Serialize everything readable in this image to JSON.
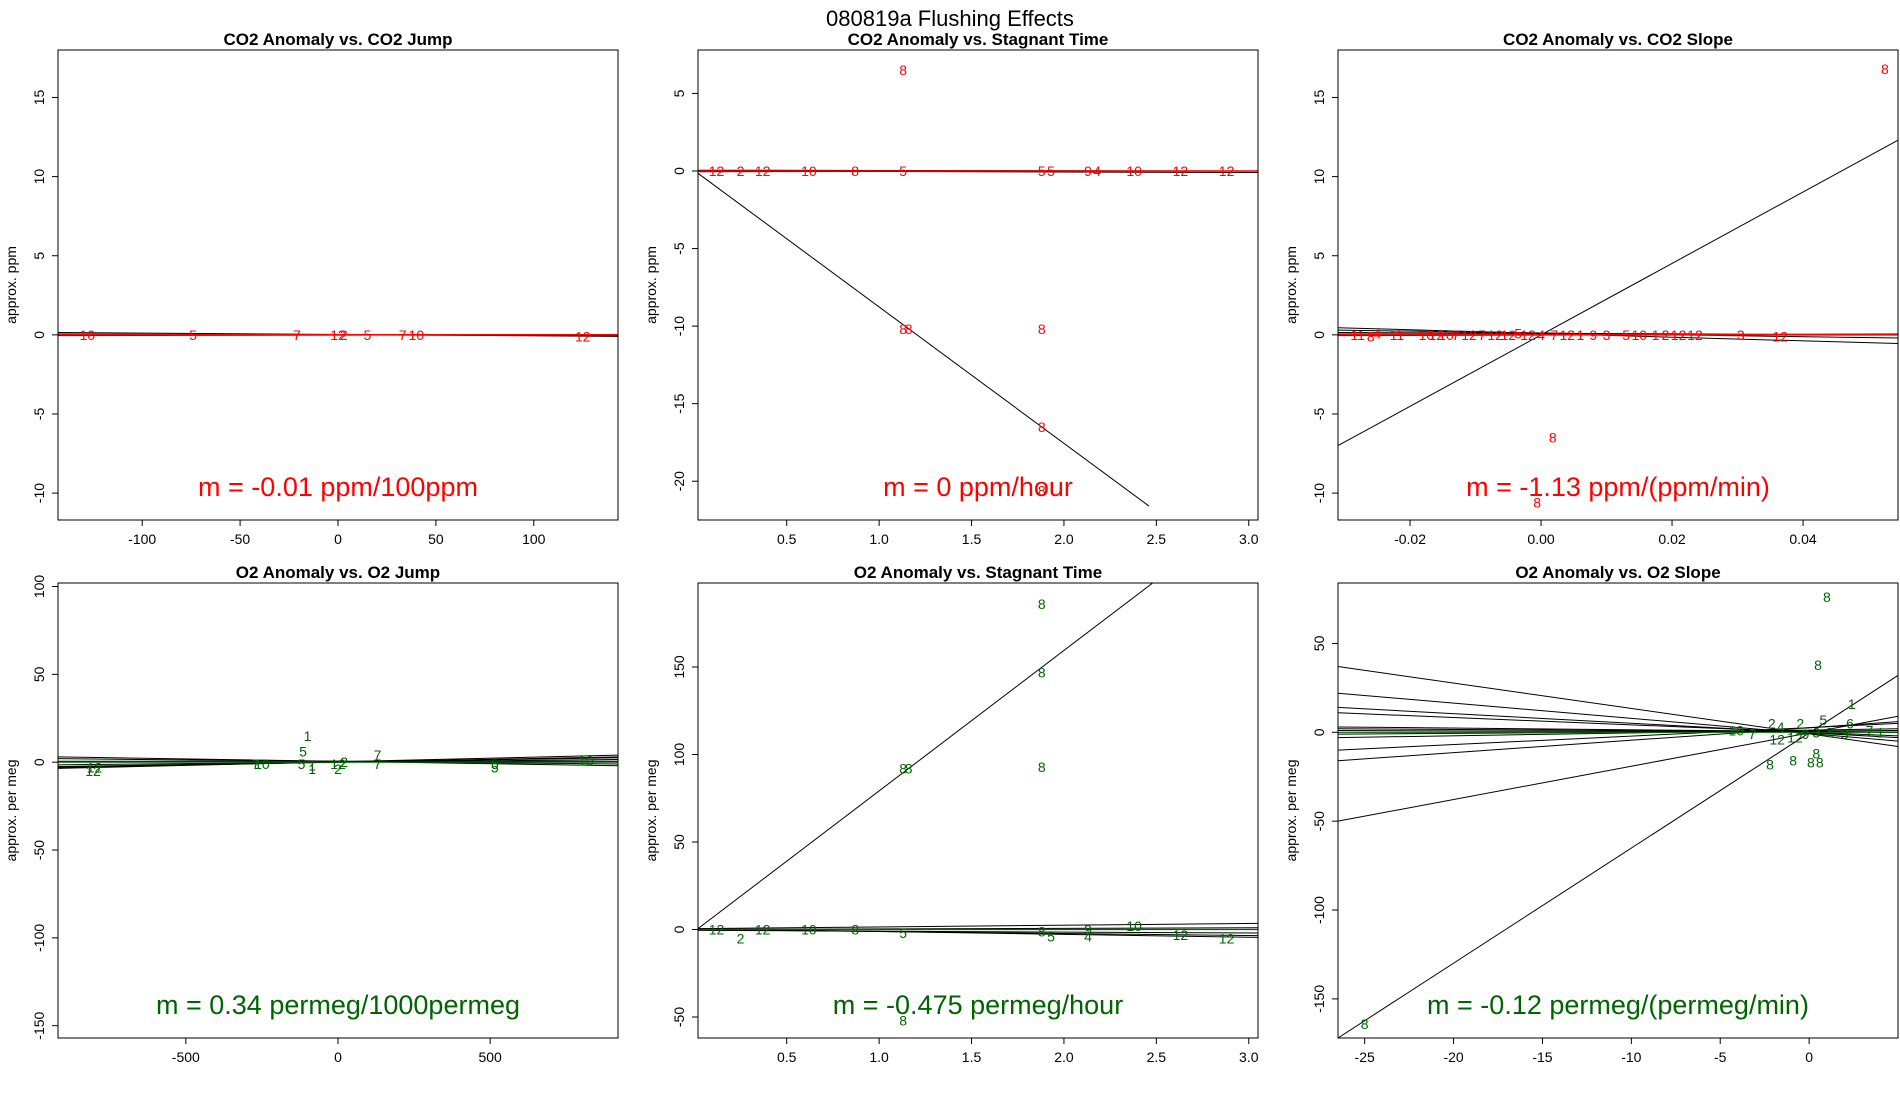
{
  "figure_title": "080819a   Flushing Effects",
  "colors": {
    "co2": "#ff0000",
    "o2": "#006400",
    "line": "#000000",
    "frame": "#000000"
  },
  "chart_data": [
    {
      "type": "scatter",
      "title": "CO2 Anomaly vs. CO2 Jump",
      "ylabel": "approx. ppm",
      "xlabel": "",
      "xlim": [
        -143,
        143
      ],
      "ylim": [
        -11.7,
        18
      ],
      "xticks": [
        -100,
        -50,
        0,
        50,
        100
      ],
      "xtick_labels": [
        "-100",
        "-50",
        "0",
        "50",
        "100"
      ],
      "yticks": [
        -10,
        -5,
        0,
        5,
        10,
        15
      ],
      "ytick_labels": [
        "-10",
        "-5",
        "0",
        "5",
        "10",
        "15"
      ],
      "slope_label": "m = -0.01 ppm/100ppm",
      "color": "co2",
      "points": [
        {
          "label": "10",
          "x": -128,
          "y": 0
        },
        {
          "label": "5",
          "x": -74,
          "y": 0
        },
        {
          "label": "7",
          "x": -21,
          "y": 0
        },
        {
          "label": "12",
          "x": 0,
          "y": 0
        },
        {
          "label": "2",
          "x": 3,
          "y": 0
        },
        {
          "label": "5",
          "x": 15,
          "y": 0
        },
        {
          "label": "7",
          "x": 33,
          "y": 0
        },
        {
          "label": "10",
          "x": 40,
          "y": 0
        },
        {
          "label": "12",
          "x": 125,
          "y": -0.1
        }
      ],
      "lines": [
        [
          -143,
          0.15,
          143,
          -0.1
        ],
        [
          -143,
          0.05,
          143,
          -0.05
        ],
        [
          -143,
          -0.05,
          143,
          0.02
        ]
      ]
    },
    {
      "type": "scatter",
      "title": "CO2 Anomaly vs. Stagnant Time",
      "ylabel": "approx. ppm",
      "xlabel": "",
      "xlim": [
        0.02,
        3.05
      ],
      "ylim": [
        -22.5,
        7.8
      ],
      "xticks": [
        0.5,
        1.0,
        1.5,
        2.0,
        2.5,
        3.0
      ],
      "xtick_labels": [
        "0.5",
        "1.0",
        "1.5",
        "2.0",
        "2.5",
        "3.0"
      ],
      "yticks": [
        -20,
        -15,
        -10,
        -5,
        0,
        5
      ],
      "ytick_labels": [
        "-20",
        "-15",
        "-10",
        "-5",
        "0",
        "5"
      ],
      "slope_label": "m = 0 ppm/hour",
      "color": "co2",
      "points": [
        {
          "label": "8",
          "x": 1.13,
          "y": 6.5
        },
        {
          "label": "12",
          "x": 0.12,
          "y": 0
        },
        {
          "label": "2",
          "x": 0.25,
          "y": 0
        },
        {
          "label": "12",
          "x": 0.37,
          "y": 0
        },
        {
          "label": "10",
          "x": 0.62,
          "y": 0
        },
        {
          "label": "8",
          "x": 0.87,
          "y": 0
        },
        {
          "label": "5",
          "x": 1.13,
          "y": 0
        },
        {
          "label": "5",
          "x": 1.88,
          "y": 0
        },
        {
          "label": "5",
          "x": 1.93,
          "y": 0
        },
        {
          "label": "9",
          "x": 2.13,
          "y": 0
        },
        {
          "label": "4",
          "x": 2.18,
          "y": 0
        },
        {
          "label": "10",
          "x": 2.38,
          "y": 0
        },
        {
          "label": "12",
          "x": 2.63,
          "y": 0
        },
        {
          "label": "12",
          "x": 2.88,
          "y": 0
        },
        {
          "label": "8",
          "x": 1.13,
          "y": -10.2
        },
        {
          "label": "8",
          "x": 1.16,
          "y": -10.2
        },
        {
          "label": "8",
          "x": 1.88,
          "y": -10.2
        },
        {
          "label": "8",
          "x": 1.88,
          "y": -16.5
        },
        {
          "label": "8",
          "x": 1.88,
          "y": -20.6
        }
      ],
      "lines": [
        [
          0.02,
          -0.15,
          2.46,
          -21.6
        ],
        [
          0.02,
          0.05,
          3.05,
          0.0
        ],
        [
          0.02,
          -0.05,
          3.05,
          0.0
        ],
        [
          0.02,
          0.0,
          3.05,
          -0.1
        ]
      ]
    },
    {
      "type": "scatter",
      "title": "CO2 Anomaly vs. CO2 Slope",
      "ylabel": "approx. ppm",
      "xlabel": "",
      "xlim": [
        -0.031,
        0.0545
      ],
      "ylim": [
        -11.7,
        18
      ],
      "xticks": [
        -0.02,
        0.0,
        0.02,
        0.04
      ],
      "xtick_labels": [
        "-0.02",
        "0.00",
        "0.02",
        "0.04"
      ],
      "yticks": [
        -10,
        -5,
        0,
        5,
        10,
        15
      ],
      "ytick_labels": [
        "-10",
        "-5",
        "0",
        "5",
        "10",
        "15"
      ],
      "slope_label": "m = -1.13 ppm/(ppm/min)",
      "color": "co2",
      "points": [
        {
          "label": "8",
          "x": 0.0525,
          "y": 16.8
        },
        {
          "label": "11",
          "x": -0.028,
          "y": 0
        },
        {
          "label": "8",
          "x": -0.026,
          "y": -0.1
        },
        {
          "label": "4",
          "x": -0.025,
          "y": 0.1
        },
        {
          "label": "11",
          "x": -0.022,
          "y": 0
        },
        {
          "label": "10",
          "x": -0.0175,
          "y": 0
        },
        {
          "label": "12",
          "x": -0.016,
          "y": 0
        },
        {
          "label": "10",
          "x": -0.0145,
          "y": 0
        },
        {
          "label": "7",
          "x": -0.013,
          "y": 0
        },
        {
          "label": "12",
          "x": -0.011,
          "y": 0
        },
        {
          "label": "7",
          "x": -0.009,
          "y": 0
        },
        {
          "label": "12",
          "x": -0.007,
          "y": 0
        },
        {
          "label": "12",
          "x": -0.005,
          "y": 0
        },
        {
          "label": "5",
          "x": -0.0035,
          "y": 0.1
        },
        {
          "label": "12",
          "x": -0.002,
          "y": 0
        },
        {
          "label": "4",
          "x": 0.0,
          "y": 0
        },
        {
          "label": "7",
          "x": 0.002,
          "y": 0
        },
        {
          "label": "12",
          "x": 0.004,
          "y": 0
        },
        {
          "label": "1",
          "x": 0.006,
          "y": 0
        },
        {
          "label": "9",
          "x": 0.008,
          "y": 0
        },
        {
          "label": "3",
          "x": 0.01,
          "y": 0
        },
        {
          "label": "5",
          "x": 0.013,
          "y": 0
        },
        {
          "label": "10",
          "x": 0.015,
          "y": 0
        },
        {
          "label": "1",
          "x": 0.0175,
          "y": 0
        },
        {
          "label": "2",
          "x": 0.019,
          "y": 0
        },
        {
          "label": "12",
          "x": 0.021,
          "y": 0
        },
        {
          "label": "12",
          "x": 0.0235,
          "y": 0
        },
        {
          "label": "3",
          "x": 0.0305,
          "y": 0
        },
        {
          "label": "12",
          "x": 0.0365,
          "y": -0.1
        },
        {
          "label": "8",
          "x": 0.0018,
          "y": -6.5
        },
        {
          "label": "8",
          "x": -0.0006,
          "y": -10.6
        }
      ],
      "lines": [
        [
          -0.031,
          -7.0,
          0.0545,
          12.3
        ],
        [
          -0.031,
          0.45,
          0.0545,
          -0.55
        ],
        [
          -0.031,
          0.3,
          0.0545,
          -0.2
        ],
        [
          -0.031,
          0.15,
          0.0545,
          0.0
        ],
        [
          -0.031,
          0.05,
          0.0545,
          0.02
        ],
        [
          -0.031,
          -0.05,
          0.0545,
          0.05
        ]
      ]
    },
    {
      "type": "scatter",
      "title": "O2 Anomaly vs. O2 Jump",
      "ylabel": "approx. per meg",
      "xlabel": "",
      "xlim": [
        -920,
        920
      ],
      "ylim": [
        -157,
        102
      ],
      "xticks": [
        -500,
        0,
        500
      ],
      "xtick_labels": [
        "-500",
        "0",
        "500"
      ],
      "yticks": [
        -150,
        -100,
        -50,
        0,
        50,
        100
      ],
      "ytick_labels": [
        "-150",
        "-100",
        "-50",
        "0",
        "50",
        "100"
      ],
      "slope_label": "m = 0.34 permeg/1000permeg",
      "color": "o2",
      "points": [
        {
          "label": "12",
          "x": -800,
          "y": -3
        },
        {
          "label": "12",
          "x": -805,
          "y": -5
        },
        {
          "label": "7",
          "x": -270,
          "y": -1
        },
        {
          "label": "10",
          "x": -250,
          "y": -1
        },
        {
          "label": "1",
          "x": -100,
          "y": 15
        },
        {
          "label": "5",
          "x": -115,
          "y": 6
        },
        {
          "label": "5",
          "x": -120,
          "y": -1
        },
        {
          "label": "1",
          "x": -85,
          "y": -2
        },
        {
          "label": "1",
          "x": -85,
          "y": -4
        },
        {
          "label": "12",
          "x": 0,
          "y": -1
        },
        {
          "label": "2",
          "x": 20,
          "y": 0
        },
        {
          "label": "2",
          "x": 0,
          "y": -4
        },
        {
          "label": "7",
          "x": 130,
          "y": 4
        },
        {
          "label": "7",
          "x": 130,
          "y": -1
        },
        {
          "label": "5",
          "x": 515,
          "y": -1
        },
        {
          "label": "5",
          "x": 515,
          "y": -3
        },
        {
          "label": "10",
          "x": 815,
          "y": 1
        }
      ],
      "lines": [
        [
          -920,
          -3.5,
          920,
          4.0
        ],
        [
          -920,
          -3.0,
          920,
          3.0
        ],
        [
          -920,
          -2.5,
          920,
          2.5
        ],
        [
          -920,
          -1.5,
          920,
          1.5
        ],
        [
          -920,
          3.0,
          920,
          -2.0
        ],
        [
          -920,
          2.0,
          920,
          -1.0
        ],
        [
          -920,
          0.5,
          920,
          0.5
        ]
      ]
    },
    {
      "type": "scatter",
      "title": "O2 Anomaly vs. Stagnant Time",
      "ylabel": "approx. per meg",
      "xlabel": "",
      "xlim": [
        0.02,
        3.05
      ],
      "ylim": [
        -62,
        198
      ],
      "xticks": [
        0.5,
        1.0,
        1.5,
        2.0,
        2.5,
        3.0
      ],
      "xtick_labels": [
        "0.5",
        "1.0",
        "1.5",
        "2.0",
        "2.5",
        "3.0"
      ],
      "yticks": [
        -50,
        0,
        50,
        100,
        150
      ],
      "ytick_labels": [
        "-50",
        "0",
        "50",
        "100",
        "150"
      ],
      "slope_label": "m = -0.475 permeg/hour",
      "color": "o2",
      "points": [
        {
          "label": "8",
          "x": 1.88,
          "y": 186
        },
        {
          "label": "8",
          "x": 1.88,
          "y": 147
        },
        {
          "label": "8",
          "x": 1.88,
          "y": 93
        },
        {
          "label": "8",
          "x": 1.13,
          "y": 92
        },
        {
          "label": "8",
          "x": 1.16,
          "y": 92
        },
        {
          "label": "12",
          "x": 0.12,
          "y": 0
        },
        {
          "label": "2",
          "x": 0.25,
          "y": -5
        },
        {
          "label": "12",
          "x": 0.37,
          "y": 0
        },
        {
          "label": "10",
          "x": 0.62,
          "y": 0
        },
        {
          "label": "8",
          "x": 0.87,
          "y": 0
        },
        {
          "label": "5",
          "x": 1.13,
          "y": -2
        },
        {
          "label": "8",
          "x": 1.88,
          "y": -1
        },
        {
          "label": "5",
          "x": 1.93,
          "y": -4
        },
        {
          "label": "4",
          "x": 2.13,
          "y": -4
        },
        {
          "label": "9",
          "x": 2.13,
          "y": 0
        },
        {
          "label": "10",
          "x": 2.38,
          "y": 2
        },
        {
          "label": "12",
          "x": 2.63,
          "y": -3
        },
        {
          "label": "12",
          "x": 2.88,
          "y": -5
        },
        {
          "label": "8",
          "x": 1.13,
          "y": -52
        }
      ],
      "lines": [
        [
          0.02,
          0.5,
          2.48,
          198
        ],
        [
          0.02,
          0.5,
          3.05,
          3.5
        ],
        [
          0.02,
          0.0,
          3.05,
          1.0
        ],
        [
          0.02,
          -0.5,
          3.05,
          -2.0
        ],
        [
          0.02,
          0.0,
          3.05,
          -3.5
        ],
        [
          0.02,
          0.5,
          3.05,
          -4.5
        ]
      ]
    },
    {
      "type": "scatter",
      "title": "O2 Anomaly vs. O2 Slope",
      "ylabel": "approx. per meg",
      "xlabel": "",
      "xlim": [
        -26.5,
        5
      ],
      "ylim": [
        -172,
        84
      ],
      "xticks": [
        -25,
        -20,
        -15,
        -10,
        -5,
        0
      ],
      "xtick_labels": [
        "-25",
        "-20",
        "-15",
        "-10",
        "-5",
        "0"
      ],
      "yticks": [
        -150,
        -100,
        -50,
        0,
        50
      ],
      "ytick_labels": [
        "-150",
        "-100",
        "-50",
        "0",
        "50"
      ],
      "slope_label": "m = -0.12 permeg/(permeg/min)",
      "color": "o2",
      "points": [
        {
          "label": "8",
          "x": 1.0,
          "y": 76
        },
        {
          "label": "8",
          "x": 0.5,
          "y": 38
        },
        {
          "label": "1",
          "x": 2.4,
          "y": 16
        },
        {
          "label": "5",
          "x": 0.8,
          "y": 7
        },
        {
          "label": "6",
          "x": 2.3,
          "y": 5
        },
        {
          "label": "10",
          "x": -4.1,
          "y": 1
        },
        {
          "label": "7",
          "x": -3.2,
          "y": -1
        },
        {
          "label": "2",
          "x": -2.1,
          "y": 5
        },
        {
          "label": "2",
          "x": -0.5,
          "y": 5
        },
        {
          "label": "4",
          "x": -1.6,
          "y": 3
        },
        {
          "label": "7",
          "x": 3.4,
          "y": 1
        },
        {
          "label": "1",
          "x": 4.0,
          "y": 0
        },
        {
          "label": "12",
          "x": -1.8,
          "y": -4
        },
        {
          "label": "12",
          "x": -0.8,
          "y": -3
        },
        {
          "label": "9",
          "x": -0.2,
          "y": -1
        },
        {
          "label": "3",
          "x": 0.4,
          "y": 0
        },
        {
          "label": "5",
          "x": 1.2,
          "y": 0
        },
        {
          "label": "3",
          "x": 2.0,
          "y": -1
        },
        {
          "label": "8",
          "x": -2.2,
          "y": -18
        },
        {
          "label": "8",
          "x": -0.9,
          "y": -16
        },
        {
          "label": "8",
          "x": 0.1,
          "y": -17
        },
        {
          "label": "8",
          "x": 0.6,
          "y": -17
        },
        {
          "label": "8",
          "x": 0.4,
          "y": -12
        },
        {
          "label": "8",
          "x": -25.0,
          "y": -164
        }
      ],
      "lines": [
        [
          -26.5,
          37,
          5,
          -8
        ],
        [
          -26.5,
          22,
          5,
          -5
        ],
        [
          -26.5,
          14,
          5,
          -3
        ],
        [
          -26.5,
          11,
          5,
          -2
        ],
        [
          -26.5,
          3,
          5,
          0
        ],
        [
          -26.5,
          2,
          5,
          0
        ],
        [
          -26.5,
          1,
          5,
          0
        ],
        [
          -26.5,
          -1,
          5,
          1
        ],
        [
          -26.5,
          -3,
          5,
          2
        ],
        [
          -26.5,
          -10,
          5,
          5
        ],
        [
          -26.5,
          -16,
          5,
          6
        ],
        [
          -26.5,
          -50,
          5,
          9
        ],
        [
          -26.5,
          -172,
          5,
          32
        ]
      ]
    }
  ]
}
